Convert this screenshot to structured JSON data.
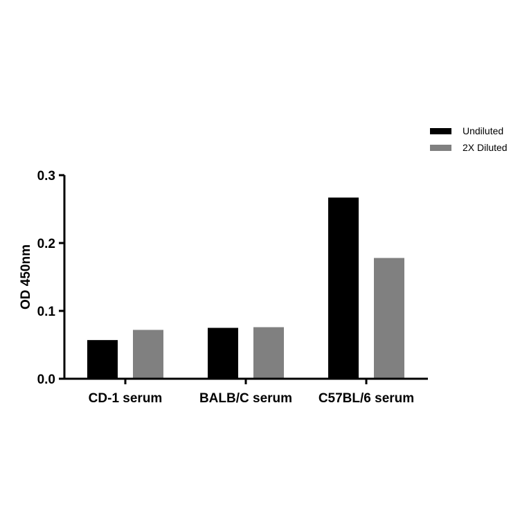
{
  "chart_data": {
    "type": "bar",
    "categories": [
      "CD-1 serum",
      "BALB/C serum",
      "C57BL/6 serum"
    ],
    "series": [
      {
        "name": "Undiluted",
        "color": "#000000",
        "values": [
          0.057,
          0.075,
          0.267
        ]
      },
      {
        "name": "2X Diluted",
        "color": "#808080",
        "values": [
          0.072,
          0.076,
          0.178
        ]
      }
    ],
    "title": "",
    "xlabel": "",
    "ylabel": "OD 450nm",
    "ylim": [
      0.0,
      0.3
    ],
    "yticks": [
      "0.0",
      "0.1",
      "0.2",
      "0.3"
    ],
    "grid": false,
    "legend_position": "top-right"
  }
}
